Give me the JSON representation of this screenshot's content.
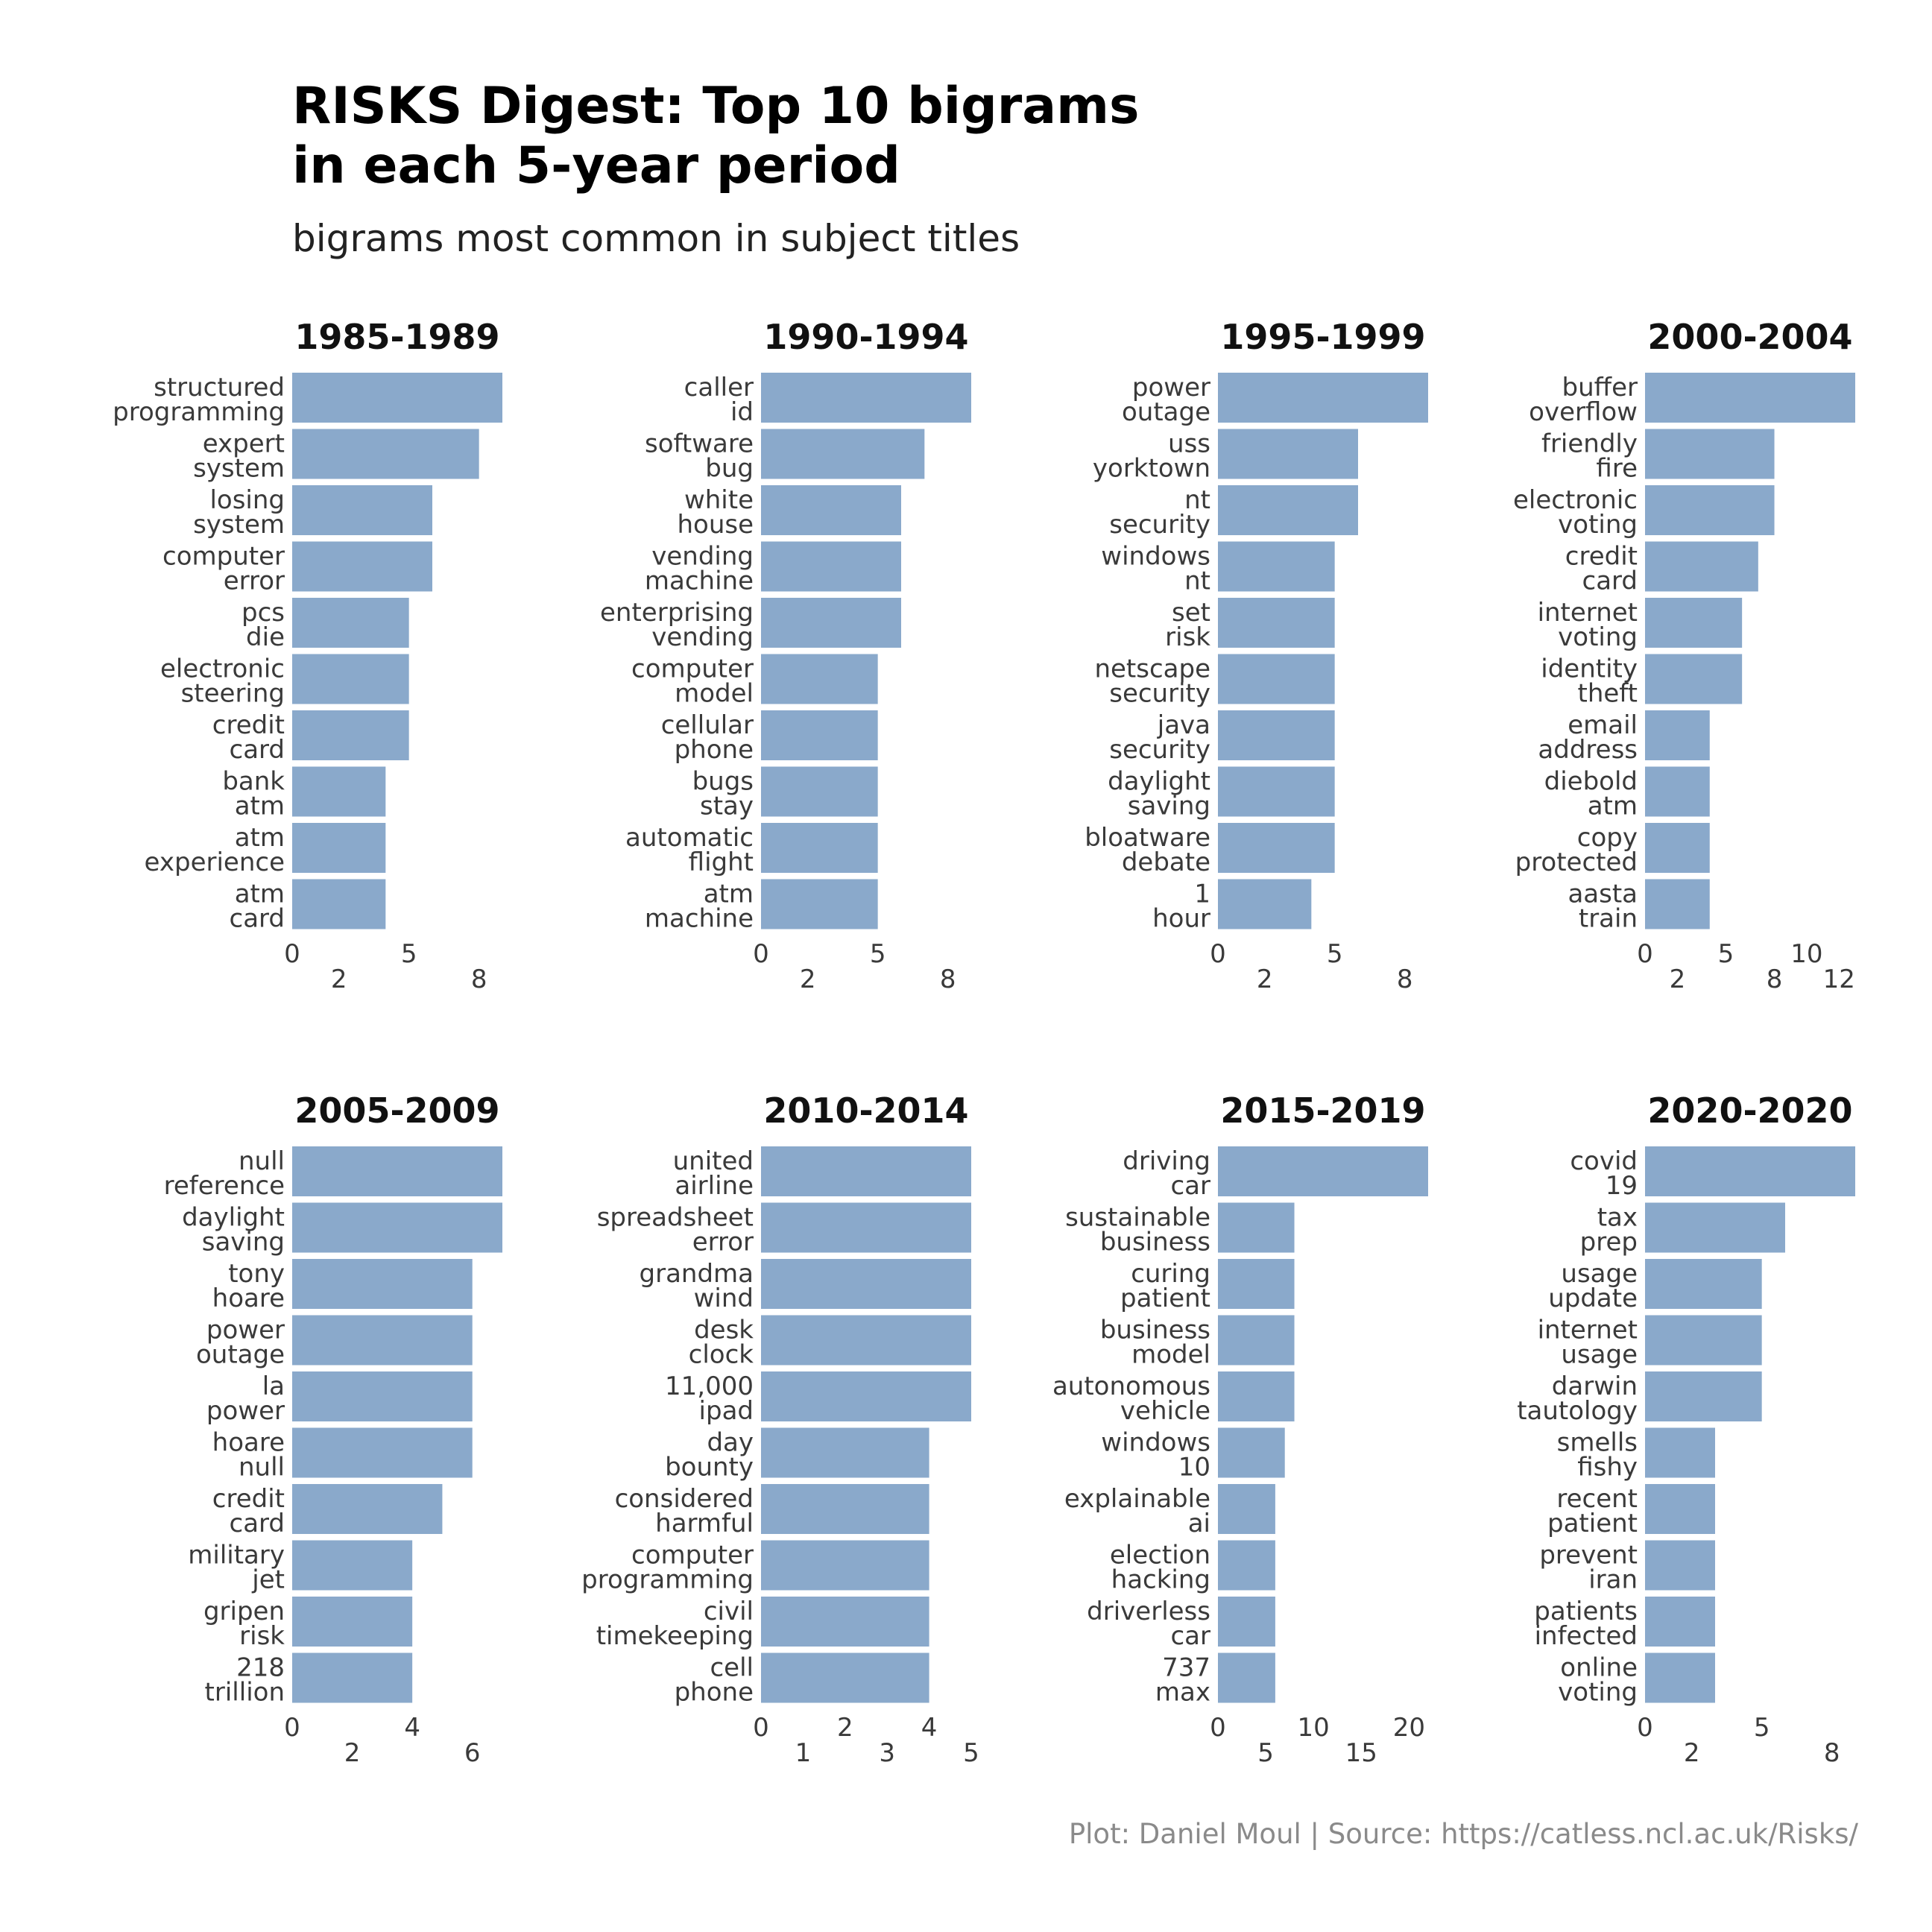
{
  "title": "RISKS Digest: Top 10 bigrams\nin each 5-year period",
  "subtitle": "bigrams most common in subject titles",
  "caption": "Plot: Daniel Moul | Source: https://catless.ncl.ac.uk/Risks/",
  "bar_color": "#8aa9cb",
  "chart_data": [
    {
      "type": "bar",
      "orientation": "horizontal",
      "title": "1985-1989",
      "categories": [
        "structured programming",
        "expert system",
        "losing system",
        "computer error",
        "pcs die",
        "electronic steering",
        "credit card",
        "bank atm",
        "atm experience",
        "atm card"
      ],
      "values": [
        9,
        8,
        6,
        6,
        5,
        5,
        5,
        4,
        4,
        4
      ],
      "xlim": [
        0,
        9
      ],
      "ticks_row1": [
        0,
        5
      ],
      "ticks_row2": [
        2,
        8
      ]
    },
    {
      "type": "bar",
      "orientation": "horizontal",
      "title": "1990-1994",
      "categories": [
        "caller id",
        "software bug",
        "white house",
        "vending machine",
        "enterprising vending",
        "computer model",
        "cellular phone",
        "bugs stay",
        "automatic flight",
        "atm machine"
      ],
      "values": [
        9,
        7,
        6,
        6,
        6,
        5,
        5,
        5,
        5,
        5
      ],
      "xlim": [
        0,
        9
      ],
      "ticks_row1": [
        0,
        5
      ],
      "ticks_row2": [
        2,
        8
      ]
    },
    {
      "type": "bar",
      "orientation": "horizontal",
      "title": "1995-1999",
      "categories": [
        "power outage",
        "uss yorktown",
        "nt security",
        "windows nt",
        "set risk",
        "netscape security",
        "java security",
        "daylight saving",
        "bloatware debate",
        "1 hour"
      ],
      "values": [
        9,
        6,
        6,
        5,
        5,
        5,
        5,
        5,
        5,
        4
      ],
      "xlim": [
        0,
        9
      ],
      "ticks_row1": [
        0,
        5
      ],
      "ticks_row2": [
        2,
        8
      ]
    },
    {
      "type": "bar",
      "orientation": "horizontal",
      "title": "2000-2004",
      "categories": [
        "buffer overflow",
        "friendly fire",
        "electronic voting",
        "credit card",
        "internet voting",
        "identity theft",
        "email address",
        "diebold atm",
        "copy protected",
        "aasta train"
      ],
      "values": [
        13,
        8,
        8,
        7,
        6,
        6,
        4,
        4,
        4,
        4
      ],
      "xlim": [
        0,
        13
      ],
      "ticks_row1": [
        0,
        5,
        10
      ],
      "ticks_row2": [
        2,
        8,
        12
      ]
    },
    {
      "type": "bar",
      "orientation": "horizontal",
      "title": "2005-2009",
      "categories": [
        "null reference",
        "daylight saving",
        "tony hoare",
        "power outage",
        "la power",
        "hoare null",
        "credit card",
        "military jet",
        "gripen risk",
        "218 trillion"
      ],
      "values": [
        7,
        7,
        6,
        6,
        6,
        6,
        5,
        4,
        4,
        4
      ],
      "xlim": [
        0,
        7
      ],
      "ticks_row1": [
        0,
        4
      ],
      "ticks_row2": [
        2,
        6
      ]
    },
    {
      "type": "bar",
      "orientation": "horizontal",
      "title": "2010-2014",
      "categories": [
        "united airline",
        "spreadsheet error",
        "grandma wind",
        "desk clock",
        "11,000 ipad",
        "day bounty",
        "considered harmful",
        "computer programming",
        "civil timekeeping",
        "cell phone"
      ],
      "values": [
        5,
        5,
        5,
        5,
        5,
        4,
        4,
        4,
        4,
        4
      ],
      "xlim": [
        0,
        5
      ],
      "ticks_row1": [
        0,
        2,
        4
      ],
      "ticks_row2": [
        1,
        3,
        5
      ]
    },
    {
      "type": "bar",
      "orientation": "horizontal",
      "title": "2015-2019",
      "categories": [
        "driving car",
        "sustainable business",
        "curing patient",
        "business model",
        "autonomous vehicle",
        "windows 10",
        "explainable ai",
        "election hacking",
        "driverless car",
        "737 max"
      ],
      "values": [
        22,
        8,
        8,
        8,
        8,
        7,
        6,
        6,
        6,
        6
      ],
      "xlim": [
        0,
        22
      ],
      "ticks_row1": [
        0,
        10,
        20
      ],
      "ticks_row2": [
        5,
        15
      ]
    },
    {
      "type": "bar",
      "orientation": "horizontal",
      "title": "2020-2020",
      "categories": [
        "covid 19",
        "tax prep",
        "usage update",
        "internet usage",
        "darwin tautology",
        "smells fishy",
        "recent patient",
        "prevent iran",
        "patients infected",
        "online voting"
      ],
      "values": [
        9,
        6,
        5,
        5,
        5,
        3,
        3,
        3,
        3,
        3
      ],
      "xlim": [
        0,
        9
      ],
      "ticks_row1": [
        0,
        5
      ],
      "ticks_row2": [
        2,
        8
      ]
    }
  ]
}
